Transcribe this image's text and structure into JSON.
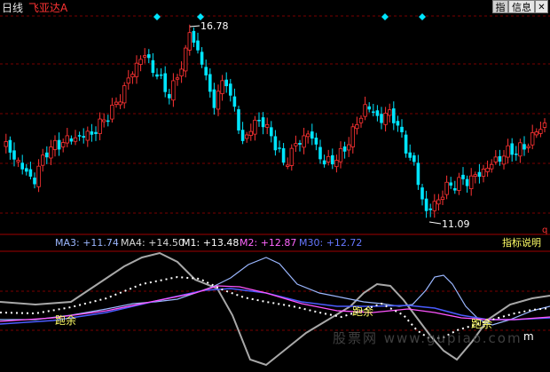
{
  "header": {
    "period": "日线",
    "stock": "飞亚达A"
  },
  "buttons": {
    "indicator": "指",
    "info": "信息",
    "close": "✕"
  },
  "price_labels": {
    "high": "16.78",
    "low": "11.09"
  },
  "ma_bar": {
    "ma3": {
      "label": "MA3: +11.74",
      "color": "#9bb7ff"
    },
    "ma4": {
      "label": "MA4: +14.50",
      "color": "#d8d8d8"
    },
    "m1": {
      "label": "M1: +13.48",
      "color": "#ffffff"
    },
    "m2": {
      "label": "M2: +12.87",
      "color": "#ff66ff"
    },
    "m30": {
      "label": "M30: +12.72",
      "color": "#6677ff"
    }
  },
  "indicator_help": "指标说明",
  "corner_mark": "q",
  "signals": [
    "跑余",
    "跑余",
    "跑余"
  ],
  "watermark": "股票网 www.gupiao.com",
  "colors": {
    "up": "#ff3333",
    "down": "#00e5ff",
    "grid": "#7a0000",
    "diamond": "#00e5ff"
  }
}
